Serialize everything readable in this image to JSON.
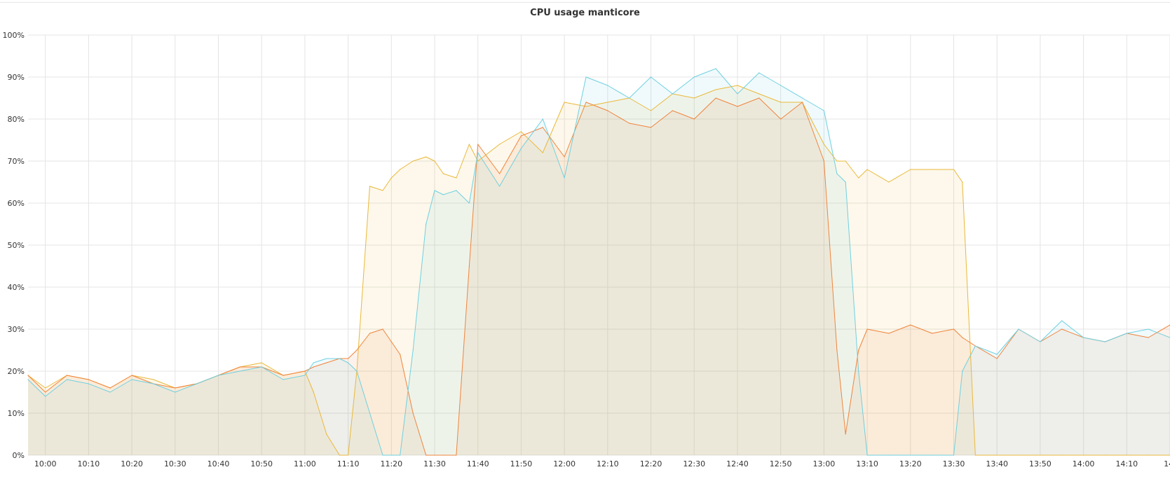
{
  "panel": {
    "title": "CPU usage manticore"
  },
  "colors": {
    "grid": "#e4e4e4",
    "series": [
      "#eab839",
      "#ef843c",
      "#6ed0e0"
    ]
  },
  "chart_data": {
    "type": "area",
    "title": "CPU usage manticore",
    "xlabel": "",
    "ylabel": "",
    "ylim": [
      0,
      100
    ],
    "xlim": [
      "09:56",
      "14:20"
    ],
    "y_ticks": [
      "0%",
      "10%",
      "20%",
      "30%",
      "40%",
      "50%",
      "60%",
      "70%",
      "80%",
      "90%",
      "100%"
    ],
    "x_ticks": [
      "10:00",
      "10:10",
      "10:20",
      "10:30",
      "10:40",
      "10:50",
      "11:00",
      "11:10",
      "11:20",
      "11:30",
      "11:40",
      "11:50",
      "12:00",
      "12:10",
      "12:20",
      "12:30",
      "12:40",
      "12:50",
      "13:00",
      "13:10",
      "13:20",
      "13:30",
      "13:40",
      "13:50",
      "14:00",
      "14:10",
      "14:"
    ],
    "grid": true,
    "legend": "none",
    "x": [
      "09:56",
      "10:00",
      "10:05",
      "10:10",
      "10:15",
      "10:20",
      "10:25",
      "10:30",
      "10:35",
      "10:40",
      "10:45",
      "10:50",
      "10:55",
      "11:00",
      "11:02",
      "11:05",
      "11:08",
      "11:10",
      "11:12",
      "11:15",
      "11:18",
      "11:20",
      "11:22",
      "11:25",
      "11:28",
      "11:30",
      "11:32",
      "11:35",
      "11:38",
      "11:40",
      "11:45",
      "11:50",
      "11:55",
      "12:00",
      "12:05",
      "12:10",
      "12:15",
      "12:20",
      "12:25",
      "12:30",
      "12:35",
      "12:40",
      "12:45",
      "12:50",
      "12:55",
      "13:00",
      "13:03",
      "13:05",
      "13:08",
      "13:10",
      "13:15",
      "13:20",
      "13:25",
      "13:30",
      "13:32",
      "13:35",
      "13:40",
      "13:45",
      "13:50",
      "13:55",
      "14:00",
      "14:05",
      "14:10",
      "14:15",
      "14:20"
    ],
    "series": [
      {
        "color": "#eab839",
        "values": [
          19,
          16,
          19,
          18,
          16,
          19,
          18,
          16,
          17,
          19,
          21,
          22,
          19,
          20,
          15,
          5,
          0,
          0,
          20,
          64,
          63,
          66,
          68,
          70,
          71,
          70,
          67,
          66,
          74,
          70,
          74,
          77,
          72,
          84,
          83,
          84,
          85,
          82,
          86,
          85,
          87,
          88,
          86,
          84,
          84,
          74,
          70,
          70,
          66,
          68,
          65,
          68,
          68,
          68,
          65,
          0,
          0,
          0,
          0,
          0,
          0,
          0,
          0,
          0,
          0
        ]
      },
      {
        "color": "#ef843c",
        "values": [
          19,
          15,
          19,
          18,
          16,
          19,
          17,
          16,
          17,
          19,
          21,
          21,
          19,
          20,
          21,
          22,
          23,
          23,
          25,
          29,
          30,
          27,
          24,
          10,
          0,
          0,
          0,
          0,
          45,
          74,
          67,
          76,
          78,
          71,
          84,
          82,
          79,
          78,
          82,
          80,
          85,
          83,
          85,
          80,
          84,
          70,
          25,
          5,
          25,
          30,
          29,
          31,
          29,
          30,
          28,
          26,
          23,
          30,
          27,
          30,
          28,
          27,
          29,
          28,
          31
        ]
      },
      {
        "color": "#6ed0e0",
        "values": [
          18,
          14,
          18,
          17,
          15,
          18,
          17,
          15,
          17,
          19,
          20,
          21,
          18,
          19,
          22,
          23,
          23,
          22,
          20,
          10,
          0,
          0,
          0,
          25,
          55,
          63,
          62,
          63,
          60,
          72,
          64,
          73,
          80,
          66,
          90,
          88,
          85,
          90,
          86,
          90,
          92,
          86,
          91,
          88,
          85,
          82,
          67,
          65,
          20,
          0,
          0,
          0,
          0,
          0,
          20,
          26,
          24,
          30,
          27,
          32,
          28,
          27,
          29,
          30,
          28
        ]
      }
    ]
  }
}
